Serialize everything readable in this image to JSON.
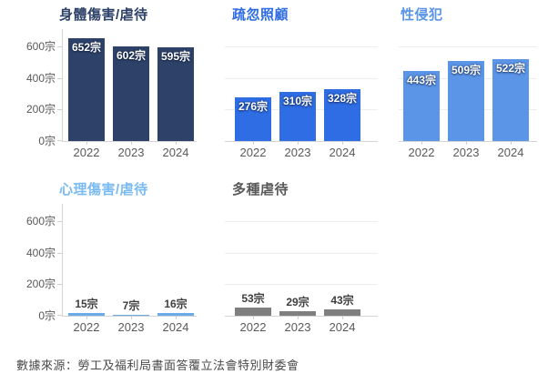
{
  "page": {
    "background": "#ffffff",
    "source_note": "數據來源：勞工及福利局書面答覆立法會特別財委會"
  },
  "axis": {
    "unit": "宗",
    "years": [
      "2022",
      "2023",
      "2024"
    ],
    "y_tick_labels": [
      "600宗",
      "400宗",
      "200宗",
      "0宗"
    ],
    "y_tick_values": [
      600,
      400,
      200,
      0
    ],
    "gridline_values": [
      600,
      400,
      200
    ],
    "y_max": 710,
    "grid_color": "#ededed",
    "axis_color": "#d4d4d4"
  },
  "chart_data": [
    {
      "type": "bar",
      "title": "身體傷害/虐待",
      "title_color": "#2e4269",
      "bar_color": "#2e4269",
      "categories": [
        "2022",
        "2023",
        "2024"
      ],
      "values": [
        652,
        602,
        595
      ],
      "data_labels": [
        "652宗",
        "602宗",
        "595宗"
      ],
      "label_position": "inside",
      "label_color": "#ffffff",
      "show_y_axis": true,
      "show_gridlines": false,
      "ylim": [
        0,
        710
      ]
    },
    {
      "type": "bar",
      "title": "疏忽照顧",
      "title_color": "#2e6ce2",
      "bar_color": "#2f6de4",
      "categories": [
        "2022",
        "2023",
        "2024"
      ],
      "values": [
        276,
        310,
        328
      ],
      "data_labels": [
        "276宗",
        "310宗",
        "328宗"
      ],
      "label_position": "inside",
      "label_color": "#ffffff",
      "show_y_axis": false,
      "show_gridlines": true,
      "ylim": [
        0,
        710
      ]
    },
    {
      "type": "bar",
      "title": "性侵犯",
      "title_color": "#5b95e8",
      "bar_color": "#5b95e8",
      "categories": [
        "2022",
        "2023",
        "2024"
      ],
      "values": [
        443,
        509,
        522
      ],
      "data_labels": [
        "443宗",
        "509宗",
        "522宗"
      ],
      "label_position": "inside",
      "label_color": "#ffffff",
      "show_y_axis": false,
      "show_gridlines": true,
      "ylim": [
        0,
        710
      ]
    },
    {
      "type": "bar",
      "title": "心理傷害/虐待",
      "title_color": "#7cbbf1",
      "bar_color": "#6babe9",
      "categories": [
        "2022",
        "2023",
        "2024"
      ],
      "values": [
        15,
        7,
        16
      ],
      "data_labels": [
        "15宗",
        "7宗",
        "16宗"
      ],
      "label_position": "outside",
      "label_color": "#3e3e3e",
      "show_y_axis": true,
      "show_gridlines": false,
      "ylim": [
        0,
        710
      ]
    },
    {
      "type": "bar",
      "title": "多種虐待",
      "title_color": "#595959",
      "bar_color": "#7f7f7f",
      "categories": [
        "2022",
        "2023",
        "2024"
      ],
      "values": [
        53,
        29,
        43
      ],
      "data_labels": [
        "53宗",
        "29宗",
        "43宗"
      ],
      "label_position": "outside",
      "label_color": "#3e3e3e",
      "show_y_axis": false,
      "show_gridlines": true,
      "ylim": [
        0,
        710
      ]
    }
  ]
}
